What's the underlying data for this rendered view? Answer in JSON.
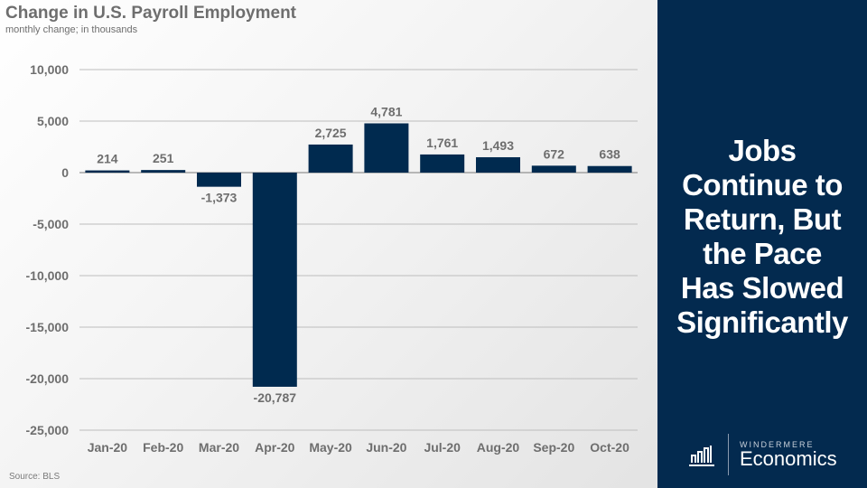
{
  "chart_data": {
    "type": "bar",
    "title": "Change in U.S. Payroll  Employment",
    "subtitle": "monthly change; in thousands",
    "source": "Source: BLS",
    "categories": [
      "Jan-20",
      "Feb-20",
      "Mar-20",
      "Apr-20",
      "May-20",
      "Jun-20",
      "Jul-20",
      "Aug-20",
      "Sep-20",
      "Oct-20"
    ],
    "values": [
      214,
      251,
      -1373,
      -20787,
      2725,
      4781,
      1761,
      1493,
      672,
      638
    ],
    "data_labels": [
      "214",
      "251",
      "-1,373",
      "-20,787",
      "2,725",
      "4,781",
      "1,761",
      "1,493",
      "672",
      "638"
    ],
    "ylim": [
      -25000,
      10000
    ],
    "yticks": [
      10000,
      5000,
      0,
      -5000,
      -10000,
      -15000,
      -20000,
      -25000
    ],
    "ytick_labels": [
      "10,000",
      "5,000",
      "0",
      "-5,000",
      "-10,000",
      "-15,000",
      "-20,000",
      "-25,000"
    ],
    "grid": true,
    "bar_color": "#002a4f"
  },
  "panel": {
    "headline": [
      "Jobs",
      "Continue to",
      "Return, But",
      "the Pace",
      "Has Slowed",
      "Significantly"
    ],
    "logo_brand": "WINDERMERE",
    "logo_name": "Economics",
    "background": "#032a4f"
  }
}
